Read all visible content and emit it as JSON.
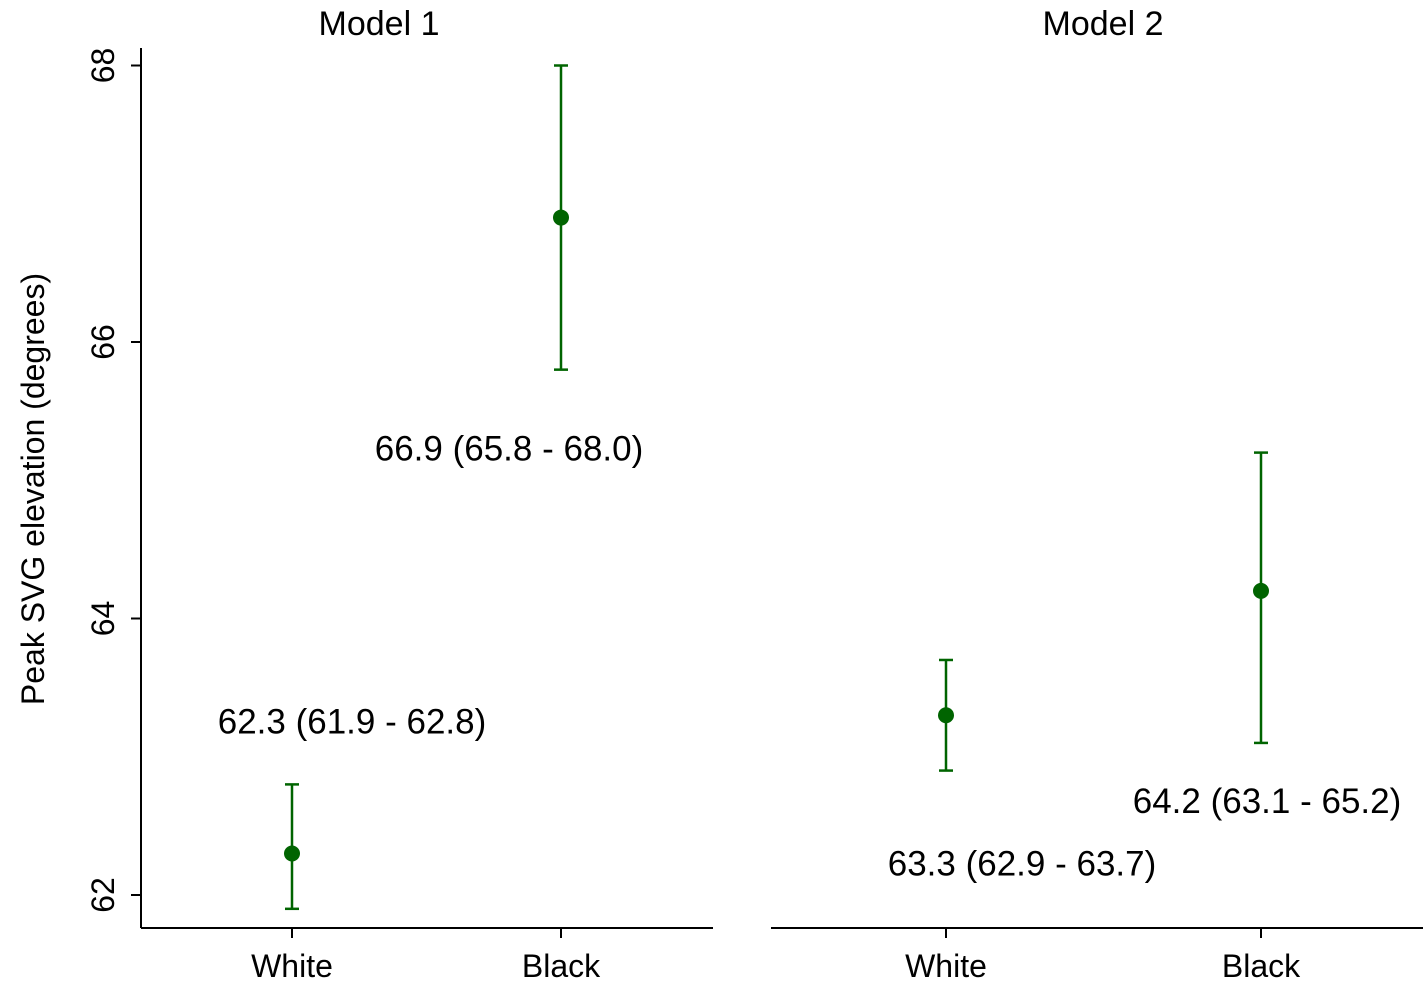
{
  "chart_data": {
    "type": "scatter",
    "subtype": "point estimates with 95% confidence intervals",
    "ylabel": "Peak SVG elevation (degrees)",
    "ylim": [
      61.8,
      68.1
    ],
    "yticks": [
      62,
      64,
      66,
      68
    ],
    "ytick_labels": [
      "62",
      "64",
      "66",
      "68"
    ],
    "categories": [
      "White",
      "Black"
    ],
    "color": "#006400",
    "grid": false,
    "legend": "none",
    "panels": [
      {
        "title": "Model 1",
        "points": [
          {
            "category": "White",
            "value": 62.3,
            "ci_low": 61.9,
            "ci_high": 62.8,
            "label": "62.3 (61.9 - 62.8)"
          },
          {
            "category": "Black",
            "value": 66.9,
            "ci_low": 65.8,
            "ci_high": 68.0,
            "label": "66.9 (65.8 - 68.0)"
          }
        ]
      },
      {
        "title": "Model 2",
        "points": [
          {
            "category": "White",
            "value": 63.3,
            "ci_low": 62.9,
            "ci_high": 63.7,
            "label": "63.3 (62.9 - 63.7)"
          },
          {
            "category": "Black",
            "value": 64.2,
            "ci_low": 63.1,
            "ci_high": 65.2,
            "label": "64.2 (63.1 - 65.2)"
          }
        ]
      }
    ]
  }
}
